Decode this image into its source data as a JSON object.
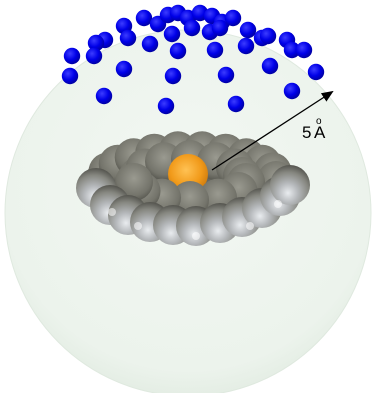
{
  "diagram": {
    "radius_label": {
      "number": "5",
      "unit_letter": "A",
      "unit_ring": "o"
    },
    "colors": {
      "sphere_fill": "#eef4ee",
      "sphere_edge": "#dfe9df",
      "probe_atoms": "#0000ee",
      "ring_atoms": "#8a8a84",
      "center_atom": "#f2a21e",
      "arrow": "#000000"
    },
    "icons": {
      "arrow": "arrow-icon",
      "molecule": "molecule-icon"
    }
  }
}
